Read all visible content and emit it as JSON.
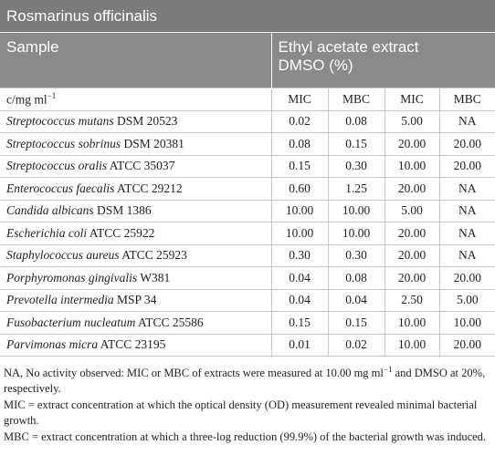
{
  "title": "Rosmarinus officinalis",
  "header": {
    "sample": "Sample",
    "extract": [
      "Ethyl acetate extract",
      "DMSO (%)"
    ]
  },
  "subheader": {
    "unit": {
      "text": "c/mg ml",
      "sup": "−1"
    },
    "columns": [
      "MIC",
      "MBC",
      "MIC",
      "MBC"
    ]
  },
  "table": {
    "rows": [
      {
        "name": "Streptococcus mutans",
        "strain": "DSM 20523",
        "cells": [
          "0.02",
          "0.08",
          "5.00",
          "NA"
        ]
      },
      {
        "name": "Streptococcus sobrinus",
        "strain": "DSM 20381",
        "cells": [
          "0.08",
          "0.15",
          "20.00",
          "20.00"
        ]
      },
      {
        "name": "Streptococcus oralis",
        "strain": "ATCC 35037",
        "cells": [
          "0.15",
          "0.30",
          "10.00",
          "20.00"
        ]
      },
      {
        "name": "Enterococcus faecalis",
        "strain": "ATCC 29212",
        "cells": [
          "0.60",
          "1.25",
          "20.00",
          "NA"
        ]
      },
      {
        "name": "Candida albicans",
        "strain": "DSM 1386",
        "cells": [
          "10.00",
          "10.00",
          "5.00",
          "NA"
        ]
      },
      {
        "name": "Escherichia coli",
        "strain": "ATCC 25922",
        "cells": [
          "10.00",
          "10.00",
          "20.00",
          "NA"
        ]
      },
      {
        "name": "Staphylococcus aureus",
        "strain": "ATCC 25923",
        "cells": [
          "0.30",
          "0.30",
          "20.00",
          "NA"
        ]
      },
      {
        "name": "Porphyromonas gingivalis",
        "strain": "W381",
        "cells": [
          "0.04",
          "0.08",
          "20.00",
          "20.00"
        ]
      },
      {
        "name": "Prevotella intermedia",
        "strain": "MSP 34",
        "cells": [
          "0.04",
          "0.04",
          "2.50",
          "5.00"
        ]
      },
      {
        "name": "Fusobacterium nucleatum",
        "strain": "ATCC 25586",
        "cells": [
          "0.15",
          "0.15",
          "10.00",
          "10.00"
        ]
      },
      {
        "name": "Parvimonas micra",
        "strain": "ATCC 23195",
        "cells": [
          "0.01",
          "0.02",
          "10.00",
          "20.00"
        ]
      }
    ]
  },
  "footnotes": [
    {
      "before": "NA, No activity observed: MIC or MBC of extracts were measured at 10.00 mg ml",
      "sup": "−1",
      "after": " and DMSO at 20%, respectively."
    },
    {
      "before": "MIC = extract concentration at which the optical density (OD) measurement revealed minimal bacterial growth."
    },
    {
      "before": "MBC = extract concentration at which a three-log reduction (99.9%) of the bacterial growth was induced."
    }
  ]
}
